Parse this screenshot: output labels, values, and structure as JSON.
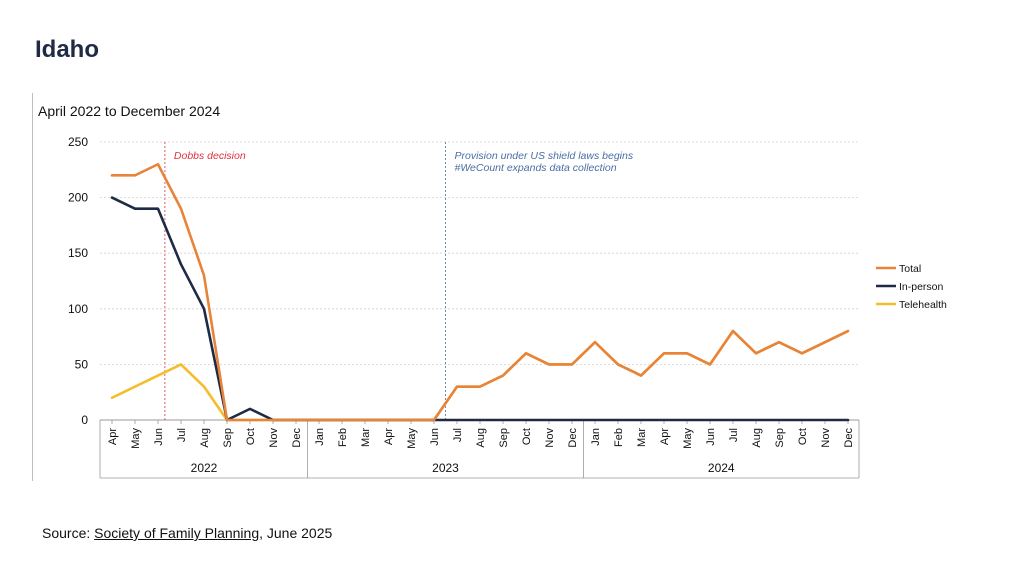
{
  "page": {
    "title": "Idaho",
    "source_prefix": "Source: ",
    "source_link": "Society of Family Planning",
    "source_suffix": ", June 2025"
  },
  "colors": {
    "total": "#e8833a",
    "in_person": "#1f2a44",
    "telehealth": "#f5bd2b",
    "dobbs": "#e0313f",
    "shield": "#4a6fa5",
    "grid": "#d0d0d0",
    "axis": "#9a9a9a"
  },
  "chart_data": {
    "type": "line",
    "title": "April 2022 to December 2024",
    "ylim": [
      0,
      250
    ],
    "yticks": [
      0,
      50,
      100,
      150,
      200,
      250
    ],
    "x": [
      "Apr",
      "May",
      "Jun",
      "Jul",
      "Aug",
      "Sep",
      "Oct",
      "Nov",
      "Dec",
      "Jan",
      "Feb",
      "Mar",
      "Apr",
      "May",
      "Jun",
      "Jul",
      "Aug",
      "Sep",
      "Oct",
      "Nov",
      "Dec",
      "Jan",
      "Feb",
      "Mar",
      "Apr",
      "May",
      "Jun",
      "Jul",
      "Aug",
      "Sep",
      "Oct",
      "Nov",
      "Dec"
    ],
    "years": [
      {
        "label": "2022",
        "start": 0,
        "end": 8
      },
      {
        "label": "2023",
        "start": 9,
        "end": 20
      },
      {
        "label": "2024",
        "start": 21,
        "end": 32
      }
    ],
    "series": [
      {
        "name": "Total",
        "color_key": "total",
        "values": [
          220,
          220,
          230,
          190,
          130,
          0,
          0,
          0,
          0,
          0,
          0,
          0,
          0,
          0,
          0,
          30,
          30,
          40,
          60,
          50,
          50,
          70,
          50,
          40,
          60,
          60,
          50,
          80,
          60,
          70,
          60,
          70,
          80
        ]
      },
      {
        "name": "In-person",
        "color_key": "in_person",
        "values": [
          200,
          190,
          190,
          140,
          100,
          0,
          10,
          0,
          0,
          0,
          0,
          0,
          0,
          0,
          0,
          0,
          0,
          0,
          0,
          0,
          0,
          0,
          0,
          0,
          0,
          0,
          0,
          0,
          0,
          0,
          0,
          0,
          0
        ]
      },
      {
        "name": "Telehealth",
        "color_key": "telehealth",
        "values": [
          20,
          30,
          40,
          50,
          30,
          0,
          0,
          0,
          0,
          0,
          0,
          0,
          0,
          0,
          0,
          30,
          30,
          40,
          60,
          50,
          50,
          70,
          50,
          40,
          60,
          60,
          50,
          80,
          60,
          70,
          60,
          70,
          80
        ]
      }
    ],
    "annotations": [
      {
        "at_index": 2.3,
        "lines": [
          "Dobbs decision"
        ],
        "color_key": "dobbs"
      },
      {
        "at_index": 14.5,
        "lines": [
          "Provision under US shield laws begins",
          "#WeCount expands data collection"
        ],
        "color_key": "shield"
      }
    ],
    "legend_position": "right"
  }
}
